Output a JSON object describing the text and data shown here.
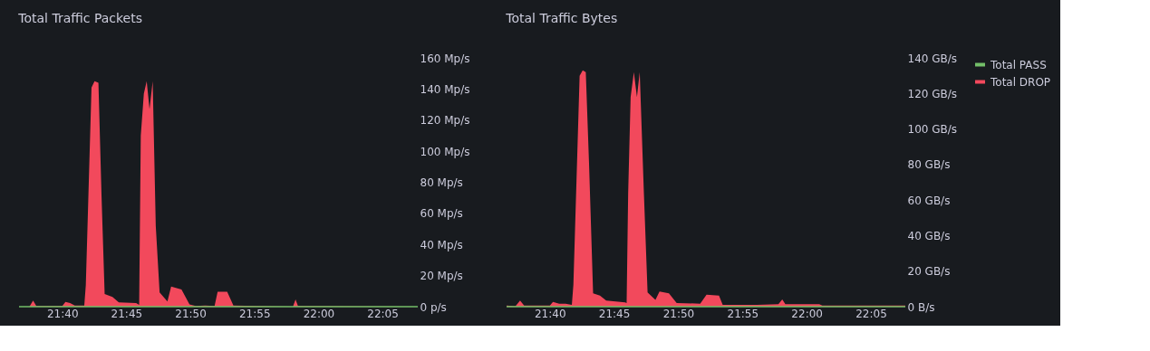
{
  "chart_data": [
    {
      "type": "area",
      "title": "Total Traffic Packets",
      "legend": "top right",
      "xlim": [
        21.6104,
        22.1292
      ],
      "ylim": [
        0,
        160
      ],
      "xticks": [
        {
          "value": 21.6667,
          "label": "21:40"
        },
        {
          "value": 21.75,
          "label": "21:45"
        },
        {
          "value": 21.8333,
          "label": "21:50"
        },
        {
          "value": 21.9167,
          "label": "21:55"
        },
        {
          "value": 22.0,
          "label": "22:00"
        },
        {
          "value": 22.0833,
          "label": "22:05"
        }
      ],
      "yticks": [
        {
          "value": 0,
          "label": "0 p/s"
        },
        {
          "value": 20,
          "label": "20 Mp/s"
        },
        {
          "value": 40,
          "label": "40 Mp/s"
        },
        {
          "value": 60,
          "label": "60 Mp/s"
        },
        {
          "value": 80,
          "label": "80 Mp/s"
        },
        {
          "value": 100,
          "label": "100 Mp/s"
        },
        {
          "value": 120,
          "label": "120 Mp/s"
        },
        {
          "value": 140,
          "label": "140 Mp/s"
        },
        {
          "value": 160,
          "label": "160 Mp/s"
        }
      ],
      "series": [
        {
          "name": "Total PASS",
          "type": "line",
          "color": "#73bf69",
          "x": [
            21.6104,
            22.1292
          ],
          "values": [
            0,
            0
          ]
        },
        {
          "name": "Total DROP",
          "color": "#f2495c",
          "x": [
            21.6104,
            21.6239,
            21.6287,
            21.6329,
            21.6667,
            21.6708,
            21.6768,
            21.683,
            21.6953,
            21.6973,
            21.7047,
            21.7087,
            21.7137,
            21.7177,
            21.7218,
            21.732,
            21.7402,
            21.7627,
            21.7667,
            21.7688,
            21.7728,
            21.7765,
            21.7802,
            21.7843,
            21.7883,
            21.7933,
            21.8035,
            21.8083,
            21.8218,
            21.8322,
            21.8403,
            21.8525,
            21.8648,
            21.8688,
            21.8812,
            21.8893,
            21.9668,
            21.9702,
            21.9733,
            22.1292
          ],
          "values": [
            0,
            0,
            3.9,
            0.4,
            0.4,
            3.1,
            2.3,
            0.8,
            0.8,
            13.9,
            141,
            145,
            144,
            72,
            8.1,
            6.2,
            2.7,
            2.3,
            1.2,
            110,
            137,
            145,
            127,
            145,
            52,
            9.1,
            3.3,
            12.9,
            11,
            1.4,
            0.4,
            0.8,
            0.4,
            9.6,
            9.6,
            0.8,
            0,
            4.6,
            0.4,
            0
          ]
        }
      ]
    },
    {
      "type": "area",
      "title": "Total Traffic Bytes",
      "legend": "top right",
      "xlim": [
        21.6105,
        22.128
      ],
      "ylim": [
        0,
        140
      ],
      "xticks": [
        {
          "value": 21.6667,
          "label": "21:40"
        },
        {
          "value": 21.75,
          "label": "21:45"
        },
        {
          "value": 21.8333,
          "label": "21:50"
        },
        {
          "value": 21.9167,
          "label": "21:55"
        },
        {
          "value": 22.0,
          "label": "22:00"
        },
        {
          "value": 22.0833,
          "label": "22:05"
        }
      ],
      "yticks": [
        {
          "value": 0,
          "label": "0 B/s"
        },
        {
          "value": 20,
          "label": "20 GB/s"
        },
        {
          "value": 40,
          "label": "40 GB/s"
        },
        {
          "value": 60,
          "label": "60 GB/s"
        },
        {
          "value": 80,
          "label": "80 GB/s"
        },
        {
          "value": 100,
          "label": "100 GB/s"
        },
        {
          "value": 120,
          "label": "120 GB/s"
        },
        {
          "value": 140,
          "label": "140 GB/s"
        }
      ],
      "series": [
        {
          "name": "Total PASS",
          "type": "line",
          "color": "#73bf69",
          "x": [
            21.6105,
            22.128
          ],
          "values": [
            0,
            0
          ]
        },
        {
          "name": "Total DROP",
          "color": "#f2495c",
          "x": [
            21.6105,
            21.622,
            21.628,
            21.6333,
            21.6667,
            21.6707,
            21.6788,
            21.687,
            21.6952,
            21.6972,
            21.7053,
            21.7093,
            21.7133,
            21.7175,
            21.7228,
            21.7317,
            21.7398,
            21.7642,
            21.7663,
            21.7683,
            21.7715,
            21.7757,
            21.7797,
            21.7833,
            21.7887,
            21.7935,
            21.8037,
            21.809,
            21.8212,
            21.8313,
            21.8618,
            21.87,
            21.8862,
            21.891,
            21.935,
            21.9633,
            21.9683,
            21.9723,
            22.0163,
            22.0203,
            22.128
          ],
          "values": [
            0.7,
            0.3,
            3.4,
            0.7,
            0.7,
            2.7,
            1.7,
            1.7,
            1.0,
            12.3,
            130,
            133,
            132,
            81,
            7.5,
            6.3,
            3.4,
            2.4,
            2.1,
            64,
            118,
            132,
            118,
            132,
            64,
            8.0,
            3.8,
            8.5,
            7.5,
            2.1,
            1.7,
            6.8,
            6.3,
            1.0,
            1.0,
            1.4,
            4.1,
            1.4,
            1.4,
            0.7,
            0.7
          ]
        }
      ]
    }
  ]
}
